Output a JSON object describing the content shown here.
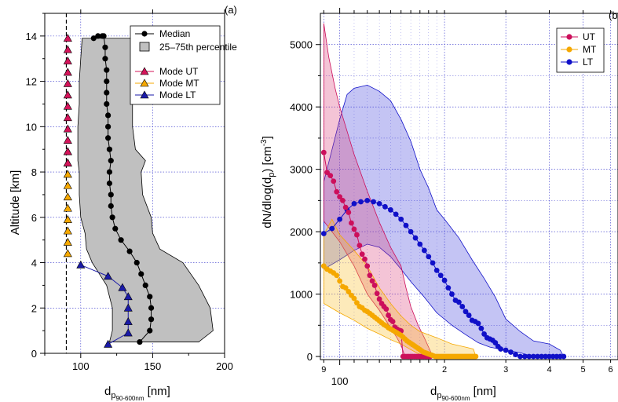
{
  "chart_data": [
    {
      "panel": "(a)",
      "type": "line",
      "xlabel_main": "d",
      "xlabel_sub": "p",
      "xlabel_subsub": "90-600nm",
      "xlabel_unit": "[nm]",
      "ylabel": "Altitude [km]",
      "xlim": [
        75,
        200
      ],
      "ylim": [
        0,
        15
      ],
      "xticks": [
        "100",
        "150",
        "200"
      ],
      "yticks": [
        "0",
        "2",
        "4",
        "6",
        "8",
        "10",
        "12",
        "14"
      ],
      "grid": true,
      "legend": {
        "position": "top-right",
        "entries": [
          "Median",
          "25–75th percentile",
          "Mode UT",
          "Mode MT",
          "Mode LT"
        ]
      },
      "reference_line_x": 90,
      "median": {
        "name": "Median",
        "x": [
          141,
          148,
          149,
          149,
          148,
          145,
          142,
          139,
          134,
          128,
          124,
          122,
          121,
          121,
          120,
          120,
          121,
          120,
          119,
          119,
          119,
          118,
          118,
          118,
          118,
          117,
          117,
          116,
          115,
          112,
          109
        ],
        "y": [
          0.5,
          1,
          1.5,
          2,
          2.5,
          3,
          3.5,
          4,
          4.5,
          5,
          5.5,
          6,
          6.5,
          7,
          7.5,
          8,
          8.5,
          9,
          9.5,
          10,
          10.5,
          11,
          11.5,
          12,
          12.5,
          13,
          13.5,
          14,
          14,
          14,
          13.9
        ]
      },
      "percentile": {
        "name": "25–75th percentile",
        "y": [
          0.5,
          1,
          2,
          3,
          4,
          4.6,
          5.3,
          6,
          7,
          8,
          8.5,
          9,
          10,
          11,
          12,
          13,
          13.9
        ],
        "p25": [
          120,
          122,
          122,
          118,
          108,
          104,
          103,
          100,
          99,
          99,
          98,
          98,
          98,
          99,
          99,
          100,
          101
        ],
        "p75": [
          182,
          192,
          190,
          182,
          171,
          155,
          150,
          149,
          143,
          142,
          145,
          138,
          136,
          136,
          137,
          137,
          137
        ]
      },
      "mode_ut": {
        "name": "Mode UT",
        "color": "#d4145a",
        "x": [
          91,
          91,
          91,
          91,
          91,
          91,
          91,
          91,
          91,
          91,
          91,
          91
        ],
        "y": [
          8.4,
          8.9,
          9.4,
          9.9,
          10.4,
          10.9,
          11.4,
          11.9,
          12.4,
          12.9,
          13.4,
          13.9
        ]
      },
      "mode_mt": {
        "name": "Mode MT",
        "color": "#f5a800",
        "x": [
          91,
          91,
          91,
          91,
          91,
          91,
          91,
          91,
          91,
          91
        ],
        "y": [
          4.4,
          4.9,
          5.4,
          5.9,
          6.4,
          6.9,
          7.4,
          7.9,
          8.4,
          8.9
        ]
      },
      "mode_lt": {
        "name": "Mode LT",
        "color": "#1a1aa8",
        "x": [
          119,
          133,
          133,
          133,
          133,
          129,
          119,
          100
        ],
        "y": [
          0.4,
          0.9,
          1.4,
          2.0,
          2.5,
          2.9,
          3.4,
          3.9
        ]
      }
    },
    {
      "panel": "(b)",
      "type": "line",
      "xlabel_main": "d",
      "xlabel_sub": "p",
      "xlabel_subsub": "90-600nm",
      "xlabel_unit": "[nm]",
      "ylabel_main": "dN/dlog(d",
      "ylabel_sub": "p",
      "ylabel_mid": ") [cm",
      "ylabel_sup": "-3",
      "ylabel_end": "]",
      "xscale": "log",
      "xlim": [
        88,
        630
      ],
      "ylim": [
        -50,
        5500
      ],
      "xticks_major": [
        "100"
      ],
      "xticks_minor": [
        "9",
        "2",
        "3",
        "4",
        "5",
        "6"
      ],
      "yticks": [
        "0",
        "1000",
        "2000",
        "3000",
        "4000",
        "5000"
      ],
      "grid": true,
      "legend": {
        "position": "top-right",
        "entries": [
          "UT",
          "MT",
          "LT"
        ]
      },
      "series": [
        {
          "name": "UT",
          "color": "#cc0f5b",
          "x": [
            90,
            92,
            94,
            96,
            98,
            100,
            102,
            104,
            106,
            108,
            110,
            112,
            114,
            116,
            118,
            120,
            122,
            124,
            126,
            128,
            130,
            132,
            134,
            136,
            138,
            140,
            142,
            144,
            146,
            148,
            150,
            152,
            154,
            156,
            158,
            160,
            162,
            164,
            166,
            168,
            170,
            172,
            174,
            176,
            178,
            180,
            182
          ],
          "y": [
            3270,
            2950,
            2900,
            2810,
            2640,
            2560,
            2500,
            2390,
            2310,
            2140,
            2040,
            1950,
            1780,
            1640,
            1560,
            1450,
            1300,
            1210,
            1140,
            1010,
            920,
            850,
            800,
            760,
            660,
            590,
            560,
            470,
            440,
            420,
            410,
            0,
            0,
            0,
            0,
            0,
            0,
            0,
            0,
            0,
            0,
            0,
            0,
            0,
            0,
            0,
            0
          ],
          "p25": [
            [
              90,
              2170
            ],
            [
              100,
              1840
            ],
            [
              110,
              1450
            ],
            [
              120,
              1000
            ],
            [
              130,
              740
            ],
            [
              140,
              460
            ],
            [
              146,
              300
            ],
            [
              150,
              180
            ],
            [
              154,
              0
            ],
            [
              180,
              0
            ]
          ],
          "p75": [
            [
              90,
              5340
            ],
            [
              93,
              4800
            ],
            [
              97,
              4300
            ],
            [
              100,
              4000
            ],
            [
              110,
              3240
            ],
            [
              120,
              2650
            ],
            [
              130,
              2150
            ],
            [
              140,
              1750
            ],
            [
              150,
              1450
            ],
            [
              155,
              1100
            ],
            [
              160,
              800
            ],
            [
              168,
              500
            ],
            [
              175,
              300
            ],
            [
              180,
              150
            ],
            [
              185,
              0
            ]
          ]
        },
        {
          "name": "MT",
          "color": "#f5a800",
          "x": [
            90,
            92,
            94,
            96,
            98,
            100,
            102,
            104,
            106,
            108,
            110,
            112,
            114,
            116,
            118,
            120,
            122,
            124,
            126,
            128,
            130,
            132,
            134,
            136,
            138,
            140,
            142,
            144,
            146,
            148,
            150,
            152,
            154,
            156,
            158,
            160,
            162,
            164,
            166,
            168,
            170,
            172,
            174,
            176,
            178,
            180,
            182,
            184,
            186,
            188,
            190,
            192,
            194,
            196,
            198,
            200,
            202,
            204,
            206,
            208,
            210,
            212,
            214,
            216,
            218,
            220,
            222,
            224,
            226,
            228,
            230,
            232,
            234,
            236,
            238,
            240,
            242,
            244,
            246
          ],
          "y": [
            1450,
            1400,
            1370,
            1340,
            1300,
            1210,
            1120,
            1100,
            1040,
            980,
            930,
            860,
            800,
            780,
            740,
            720,
            690,
            660,
            630,
            600,
            570,
            540,
            510,
            490,
            460,
            440,
            420,
            400,
            380,
            360,
            340,
            310,
            280,
            250,
            230,
            210,
            190,
            170,
            150,
            130,
            110,
            90,
            70,
            60,
            50,
            40,
            30,
            20,
            10,
            0,
            0,
            0,
            0,
            0,
            0,
            0,
            0,
            0,
            0,
            0,
            0,
            0,
            0,
            0,
            0,
            0,
            0,
            0,
            0,
            0,
            0,
            0,
            0,
            0,
            0,
            0,
            0,
            0,
            0
          ],
          "p25": [
            [
              90,
              850
            ],
            [
              100,
              700
            ],
            [
              110,
              580
            ],
            [
              120,
              450
            ],
            [
              130,
              360
            ],
            [
              140,
              270
            ],
            [
              150,
              200
            ],
            [
              160,
              110
            ],
            [
              170,
              30
            ],
            [
              180,
              0
            ],
            [
              246,
              0
            ]
          ],
          "p75": [
            [
              90,
              1950
            ],
            [
              95,
              2200
            ],
            [
              100,
              1950
            ],
            [
              110,
              1700
            ],
            [
              120,
              1450
            ],
            [
              130,
              1100
            ],
            [
              140,
              850
            ],
            [
              150,
              650
            ],
            [
              160,
              500
            ],
            [
              170,
              400
            ],
            [
              190,
              300
            ],
            [
              210,
              200
            ],
            [
              230,
              150
            ],
            [
              242,
              120
            ],
            [
              246,
              0
            ]
          ]
        },
        {
          "name": "LT",
          "color": "#1010c8",
          "x": [
            90,
            95,
            100,
            105,
            110,
            115,
            120,
            125,
            130,
            135,
            140,
            145,
            150,
            155,
            160,
            165,
            170,
            175,
            180,
            185,
            190,
            195,
            200,
            205,
            210,
            215,
            220,
            225,
            230,
            235,
            240,
            245,
            250,
            255,
            260,
            265,
            270,
            275,
            280,
            285,
            290,
            300,
            310,
            320,
            330,
            340,
            350,
            360,
            370,
            380,
            390,
            400,
            410,
            420,
            430,
            440
          ],
          "y": [
            1970,
            2050,
            2200,
            2350,
            2450,
            2480,
            2500,
            2480,
            2450,
            2400,
            2350,
            2280,
            2200,
            2100,
            2000,
            1900,
            1800,
            1700,
            1600,
            1500,
            1380,
            1300,
            1220,
            1100,
            1000,
            900,
            870,
            800,
            720,
            660,
            580,
            560,
            530,
            450,
            360,
            300,
            280,
            260,
            220,
            160,
            120,
            100,
            70,
            30,
            0,
            0,
            0,
            0,
            0,
            0,
            0,
            0,
            0,
            0,
            0,
            0
          ],
          "p25": [
            [
              90,
              1400
            ],
            [
              100,
              1550
            ],
            [
              110,
              1700
            ],
            [
              120,
              1800
            ],
            [
              130,
              1750
            ],
            [
              140,
              1600
            ],
            [
              150,
              1400
            ],
            [
              160,
              1200
            ],
            [
              175,
              950
            ],
            [
              190,
              700
            ],
            [
              210,
              500
            ],
            [
              230,
              350
            ],
            [
              250,
              220
            ],
            [
              270,
              150
            ],
            [
              300,
              100
            ],
            [
              330,
              60
            ],
            [
              360,
              0
            ],
            [
              440,
              0
            ]
          ],
          "p75": [
            [
              90,
              2800
            ],
            [
              100,
              3800
            ],
            [
              105,
              4200
            ],
            [
              110,
              4300
            ],
            [
              120,
              4350
            ],
            [
              130,
              4250
            ],
            [
              140,
              4100
            ],
            [
              150,
              3800
            ],
            [
              160,
              3450
            ],
            [
              170,
              3000
            ],
            [
              180,
              2700
            ],
            [
              190,
              2350
            ],
            [
              200,
              2200
            ],
            [
              220,
              1900
            ],
            [
              240,
              1550
            ],
            [
              260,
              1250
            ],
            [
              280,
              950
            ],
            [
              300,
              600
            ],
            [
              330,
              400
            ],
            [
              360,
              250
            ],
            [
              400,
              200
            ],
            [
              430,
              100
            ],
            [
              440,
              0
            ]
          ]
        }
      ]
    }
  ]
}
